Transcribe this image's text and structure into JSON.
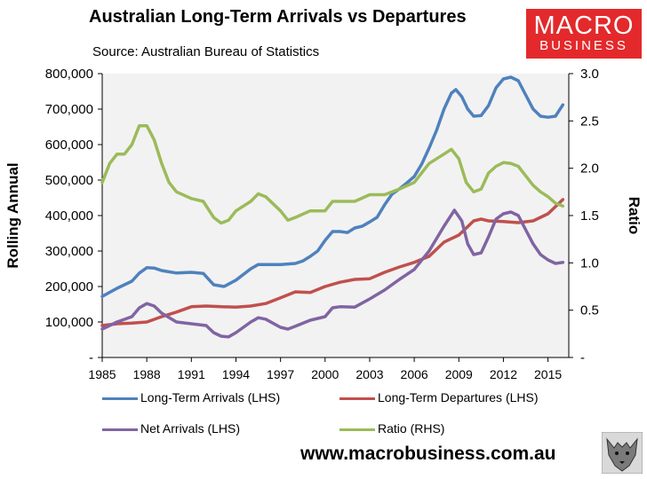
{
  "header": {
    "title": "Australian Long-Term Arrivals vs Departures",
    "subtitle": "Source: Australian Bureau of Statistics"
  },
  "logo": {
    "line1": "MACRO",
    "line2": "BUSINESS"
  },
  "footer": {
    "website": "www.macrobusiness.com.au"
  },
  "chart_data": {
    "type": "line",
    "title": "Australian Long-Term Arrivals vs Departures",
    "ylabel": "Rolling Annual",
    "y2label": "Ratio",
    "ylim": [
      0,
      800000
    ],
    "y2lim": [
      0,
      3.0
    ],
    "xlim": [
      1985,
      2016.4
    ],
    "x_ticks": [
      "1985",
      "1988",
      "1991",
      "1994",
      "1997",
      "2000",
      "2003",
      "2006",
      "2009",
      "2012",
      "2015"
    ],
    "y_ticks": [
      "-",
      "100,000",
      "200,000",
      "300,000",
      "400,000",
      "500,000",
      "600,000",
      "700,000",
      "800,000"
    ],
    "y2_ticks": [
      "-",
      "0.5",
      "1.0",
      "1.5",
      "2.0",
      "2.5",
      "3.0"
    ],
    "grid": false,
    "legend_position": "bottom",
    "series": [
      {
        "name": "Long-Term Arrivals (LHS)",
        "axis": "left",
        "color": "#4f81bd",
        "points": [
          [
            1985,
            172000
          ],
          [
            1986,
            195000
          ],
          [
            1987,
            215000
          ],
          [
            1987.5,
            238000
          ],
          [
            1988,
            253000
          ],
          [
            1988.5,
            252000
          ],
          [
            1989,
            245000
          ],
          [
            1990,
            238000
          ],
          [
            1991,
            240000
          ],
          [
            1991.8,
            237000
          ],
          [
            1992.5,
            205000
          ],
          [
            1993.2,
            200000
          ],
          [
            1994,
            218000
          ],
          [
            1995,
            250000
          ],
          [
            1995.5,
            262000
          ],
          [
            1996,
            262000
          ],
          [
            1997,
            262000
          ],
          [
            1998,
            265000
          ],
          [
            1998.5,
            272000
          ],
          [
            1999,
            285000
          ],
          [
            1999.5,
            300000
          ],
          [
            2000,
            330000
          ],
          [
            2000.5,
            355000
          ],
          [
            2001,
            355000
          ],
          [
            2001.5,
            352000
          ],
          [
            2002,
            365000
          ],
          [
            2002.5,
            370000
          ],
          [
            2003,
            382000
          ],
          [
            2003.5,
            395000
          ],
          [
            2004,
            430000
          ],
          [
            2004.5,
            460000
          ],
          [
            2005,
            475000
          ],
          [
            2005.5,
            492000
          ],
          [
            2006,
            510000
          ],
          [
            2006.5,
            545000
          ],
          [
            2007,
            590000
          ],
          [
            2007.5,
            640000
          ],
          [
            2008,
            700000
          ],
          [
            2008.5,
            745000
          ],
          [
            2008.8,
            755000
          ],
          [
            2009.2,
            735000
          ],
          [
            2009.6,
            700000
          ],
          [
            2010,
            680000
          ],
          [
            2010.5,
            682000
          ],
          [
            2011,
            710000
          ],
          [
            2011.5,
            760000
          ],
          [
            2012,
            785000
          ],
          [
            2012.5,
            790000
          ],
          [
            2013,
            780000
          ],
          [
            2013.5,
            740000
          ],
          [
            2014,
            700000
          ],
          [
            2014.5,
            680000
          ],
          [
            2015,
            677000
          ],
          [
            2015.5,
            680000
          ],
          [
            2016,
            712000
          ]
        ]
      },
      {
        "name": "Long-Term Departures (LHS)",
        "axis": "left",
        "color": "#c0504d",
        "points": [
          [
            1985,
            90000
          ],
          [
            1986,
            95000
          ],
          [
            1987,
            97000
          ],
          [
            1988,
            100000
          ],
          [
            1989,
            115000
          ],
          [
            1990,
            128000
          ],
          [
            1991,
            143000
          ],
          [
            1992,
            145000
          ],
          [
            1993,
            143000
          ],
          [
            1994,
            142000
          ],
          [
            1995,
            145000
          ],
          [
            1996,
            152000
          ],
          [
            1997,
            168000
          ],
          [
            1998,
            185000
          ],
          [
            1999,
            183000
          ],
          [
            2000,
            200000
          ],
          [
            2001,
            212000
          ],
          [
            2002,
            220000
          ],
          [
            2003,
            222000
          ],
          [
            2004,
            240000
          ],
          [
            2005,
            255000
          ],
          [
            2006,
            268000
          ],
          [
            2007,
            285000
          ],
          [
            2008,
            325000
          ],
          [
            2009,
            345000
          ],
          [
            2010,
            385000
          ],
          [
            2010.5,
            390000
          ],
          [
            2011,
            385000
          ],
          [
            2012,
            383000
          ],
          [
            2013,
            380000
          ],
          [
            2014,
            385000
          ],
          [
            2015,
            405000
          ],
          [
            2016,
            445000
          ]
        ]
      },
      {
        "name": "Net Arrivals (LHS)",
        "axis": "left",
        "color": "#8064a2",
        "points": [
          [
            1985,
            80000
          ],
          [
            1986,
            100000
          ],
          [
            1987,
            115000
          ],
          [
            1987.5,
            140000
          ],
          [
            1988,
            152000
          ],
          [
            1988.5,
            145000
          ],
          [
            1989,
            125000
          ],
          [
            1990,
            100000
          ],
          [
            1991,
            95000
          ],
          [
            1992,
            90000
          ],
          [
            1992.5,
            70000
          ],
          [
            1993,
            60000
          ],
          [
            1993.5,
            58000
          ],
          [
            1994,
            70000
          ],
          [
            1995,
            100000
          ],
          [
            1995.5,
            112000
          ],
          [
            1996,
            108000
          ],
          [
            1997,
            85000
          ],
          [
            1997.5,
            80000
          ],
          [
            1998,
            88000
          ],
          [
            1999,
            105000
          ],
          [
            2000,
            115000
          ],
          [
            2000.5,
            140000
          ],
          [
            2001,
            143000
          ],
          [
            2002,
            142000
          ],
          [
            2003,
            165000
          ],
          [
            2004,
            190000
          ],
          [
            2005,
            220000
          ],
          [
            2006,
            248000
          ],
          [
            2007,
            300000
          ],
          [
            2008,
            370000
          ],
          [
            2008.7,
            415000
          ],
          [
            2009.2,
            385000
          ],
          [
            2009.6,
            320000
          ],
          [
            2010,
            290000
          ],
          [
            2010.5,
            295000
          ],
          [
            2011,
            340000
          ],
          [
            2011.5,
            390000
          ],
          [
            2012,
            405000
          ],
          [
            2012.5,
            410000
          ],
          [
            2013,
            400000
          ],
          [
            2013.5,
            360000
          ],
          [
            2014,
            320000
          ],
          [
            2014.5,
            290000
          ],
          [
            2015,
            275000
          ],
          [
            2015.5,
            265000
          ],
          [
            2016,
            268000
          ]
        ]
      },
      {
        "name": "Ratio (RHS)",
        "axis": "right",
        "color": "#9bbb59",
        "points": [
          [
            1985,
            1.85
          ],
          [
            1985.5,
            2.05
          ],
          [
            1986,
            2.15
          ],
          [
            1986.5,
            2.15
          ],
          [
            1987,
            2.25
          ],
          [
            1987.5,
            2.45
          ],
          [
            1988,
            2.45
          ],
          [
            1988.5,
            2.3
          ],
          [
            1989,
            2.05
          ],
          [
            1989.5,
            1.85
          ],
          [
            1990,
            1.75
          ],
          [
            1991,
            1.68
          ],
          [
            1991.8,
            1.65
          ],
          [
            1992.5,
            1.48
          ],
          [
            1993,
            1.42
          ],
          [
            1993.5,
            1.45
          ],
          [
            1994,
            1.55
          ],
          [
            1995,
            1.65
          ],
          [
            1995.5,
            1.73
          ],
          [
            1996,
            1.7
          ],
          [
            1997,
            1.55
          ],
          [
            1997.5,
            1.45
          ],
          [
            1998,
            1.48
          ],
          [
            1999,
            1.55
          ],
          [
            2000,
            1.55
          ],
          [
            2000.5,
            1.65
          ],
          [
            2001,
            1.65
          ],
          [
            2002,
            1.65
          ],
          [
            2003,
            1.72
          ],
          [
            2004,
            1.72
          ],
          [
            2005,
            1.78
          ],
          [
            2006,
            1.85
          ],
          [
            2007,
            2.05
          ],
          [
            2008,
            2.15
          ],
          [
            2008.5,
            2.2
          ],
          [
            2009,
            2.1
          ],
          [
            2009.5,
            1.85
          ],
          [
            2010,
            1.75
          ],
          [
            2010.5,
            1.78
          ],
          [
            2011,
            1.95
          ],
          [
            2011.5,
            2.02
          ],
          [
            2012,
            2.06
          ],
          [
            2012.5,
            2.05
          ],
          [
            2013,
            2.02
          ],
          [
            2013.5,
            1.92
          ],
          [
            2014,
            1.82
          ],
          [
            2014.5,
            1.75
          ],
          [
            2015,
            1.7
          ],
          [
            2015.5,
            1.63
          ],
          [
            2016,
            1.6
          ]
        ]
      }
    ]
  }
}
